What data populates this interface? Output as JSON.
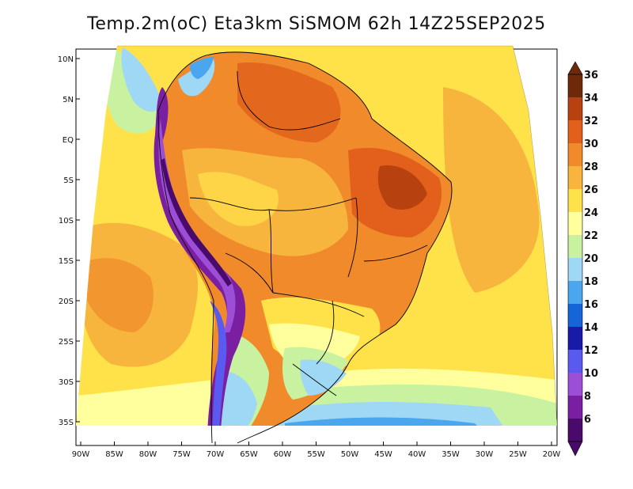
{
  "title": "Temp.2m(oC) Eta3km SiSMOM 62h 14Z25SEP2025",
  "units": "oC",
  "colors": {
    "c6": "#4a0a6b",
    "c8": "#7b1fa2",
    "c10": "#9c4fd6",
    "c12": "#5a5af0",
    "c14": "#1a1aa8",
    "c16": "#1565d8",
    "c18": "#4aa6ee",
    "c20": "#9fd8f5",
    "c22": "#c8f2a0",
    "c24": "#ffff9e",
    "c26": "#ffe24a",
    "c28": "#f7b53d",
    "c30": "#f08a2a",
    "c32": "#e2601c",
    "c34": "#b8420f",
    "c36": "#6e2a08"
  },
  "colorbar": {
    "levels": [
      "6",
      "8",
      "10",
      "12",
      "14",
      "16",
      "18",
      "20",
      "22",
      "24",
      "26",
      "28",
      "30",
      "32",
      "34",
      "36"
    ],
    "colors": [
      "#4a0a6b",
      "#7b1fa2",
      "#9c4fd6",
      "#5a5af0",
      "#1a1aa8",
      "#1565d8",
      "#4aa6ee",
      "#9fd8f5",
      "#c8f2a0",
      "#ffff9e",
      "#ffe24a",
      "#f7b53d",
      "#f08a2a",
      "#e2601c",
      "#b8420f",
      "#6e2a08"
    ]
  },
  "lat_labels": [
    "10N",
    "5N",
    "EQ",
    "5S",
    "10S",
    "15S",
    "20S",
    "25S",
    "30S",
    "35S"
  ],
  "lon_labels": [
    "90W",
    "85W",
    "80W",
    "75W",
    "70W",
    "65W",
    "60W",
    "55W",
    "50W",
    "45W",
    "40W",
    "35W",
    "30W",
    "25W",
    "20W"
  ]
}
